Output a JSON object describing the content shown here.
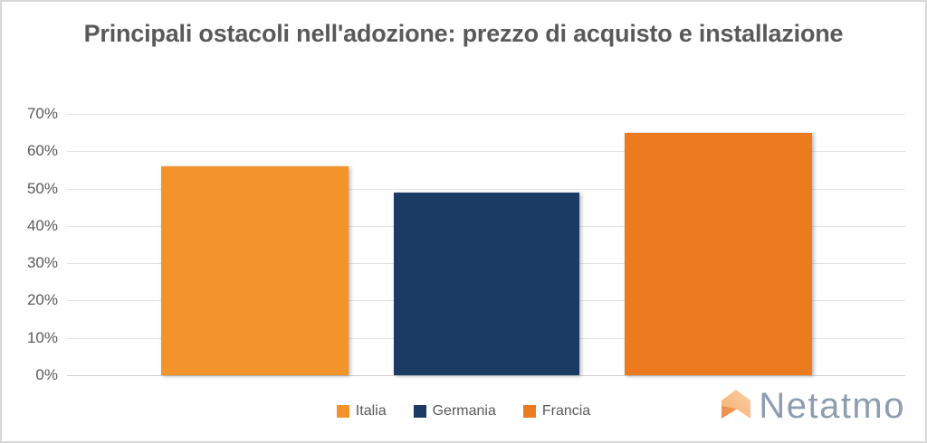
{
  "title": {
    "text": "Principali ostacoli nell'adozione: prezzo di acquisto e installazione"
  },
  "chart_data": {
    "type": "bar",
    "title": "Principali ostacoli nell'adozione: prezzo di acquisto e installazione",
    "categories": [
      "Italia",
      "Germania",
      "Francia"
    ],
    "values": [
      56,
      49,
      65
    ],
    "unit": "%",
    "bar_colors": [
      "#F2932B",
      "#1C3B64",
      "#EC7A1E"
    ],
    "xlabel": "",
    "ylabel": "",
    "ylim": [
      0,
      70
    ],
    "ytick_labels": [
      "0%",
      "10%",
      "20%",
      "30%",
      "40%",
      "50%",
      "60%",
      "70%"
    ],
    "grid": true,
    "legend_position": "bottom-center"
  },
  "branding": {
    "logo_text": "Netatmo",
    "logo_icon": "netatmo-arrow-icon",
    "logo_text_color": "#8D9DB1",
    "logo_icon_colors": [
      "#FBCDA0",
      "#F6B074",
      "#F0924F"
    ]
  },
  "colors": {
    "title_text": "#595959",
    "axis_text": "#595959",
    "gridline": "#E2E2E2",
    "baseline": "#CFCFCF",
    "background": "#FFFFFF",
    "frame_border": "#D8D8D8"
  }
}
